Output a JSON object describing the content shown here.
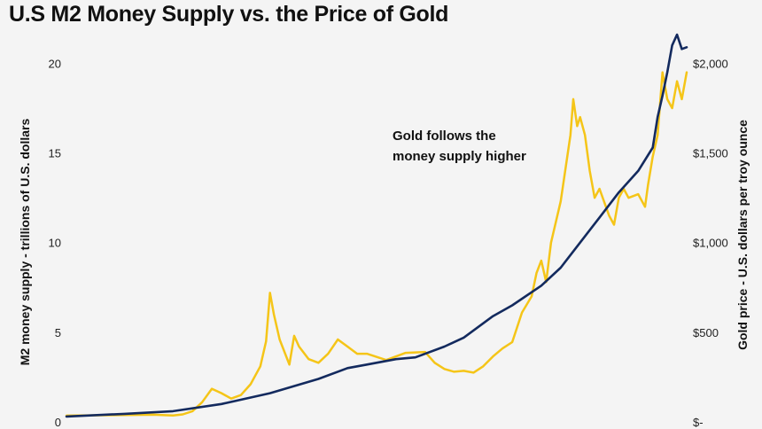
{
  "chart_data": {
    "type": "line",
    "title": "U.S M2 Money Supply vs. the Price of Gold",
    "xlabel": "",
    "ylabel": "M2 money supply - trillions of U.S. dollars",
    "y2label": "Gold price - U.S. dollars per troy ounce",
    "annotation": "Gold follows the money supply higher",
    "annotation_lines": [
      "Gold follows the",
      "money supply higher"
    ],
    "ylim": [
      0,
      22
    ],
    "y2lim": [
      0,
      2200
    ],
    "yticks": [
      0,
      5,
      10,
      15,
      20
    ],
    "ytick_labels": [
      "0",
      "5",
      "10",
      "15",
      "20"
    ],
    "y2ticks": [
      0,
      500,
      1000,
      1500,
      2000
    ],
    "y2tick_labels": [
      "$-",
      "$500",
      "$1,000",
      "$1,500",
      "$2,000"
    ],
    "xlim": [
      1959,
      2023
    ],
    "grid": false,
    "legend": "none",
    "series": [
      {
        "axis": "left",
        "color": "#132a5e",
        "x": [
          1959,
          1965,
          1970,
          1975,
          1980,
          1985,
          1988,
          1990,
          1993,
          1995,
          1998,
          2000,
          2003,
          2005,
          2008,
          2010,
          2012,
          2014,
          2016,
          2018,
          2019.5,
          2020,
          2020.5,
          2021,
          2021.5,
          2022,
          2022.5,
          2023
        ],
        "values": [
          0.3,
          0.45,
          0.6,
          1.0,
          1.6,
          2.4,
          3.0,
          3.2,
          3.5,
          3.6,
          4.2,
          4.7,
          5.9,
          6.5,
          7.6,
          8.6,
          10.0,
          11.4,
          12.8,
          14.0,
          15.3,
          17.0,
          18.2,
          19.5,
          21.0,
          21.6,
          20.8,
          20.9
        ]
      },
      {
        "axis": "right",
        "color": "#f5c518",
        "x": [
          1959,
          1968,
          1970,
          1971,
          1972,
          1973,
          1974,
          1975,
          1976,
          1977,
          1978,
          1979,
          1979.6,
          1980,
          1980.4,
          1981,
          1982,
          1982.5,
          1983,
          1984,
          1985,
          1986,
          1987,
          1988,
          1989,
          1990,
          1992,
          1994,
          1996,
          1997,
          1998,
          1999,
          2000,
          2001,
          2002,
          2003,
          2004,
          2005,
          2006,
          2007,
          2007.5,
          2008,
          2008.5,
          2009,
          2010,
          2011,
          2011.3,
          2011.7,
          2012,
          2012.5,
          2013,
          2013.5,
          2014,
          2015,
          2015.5,
          2016,
          2016.5,
          2017,
          2018,
          2018.7,
          2019,
          2019.5,
          2020,
          2020.5,
          2021,
          2021.5,
          2022,
          2022.5,
          2023
        ],
        "values": [
          35,
          40,
          36,
          42,
          60,
          110,
          185,
          160,
          130,
          150,
          210,
          310,
          450,
          720,
          600,
          460,
          320,
          480,
          420,
          350,
          330,
          380,
          460,
          420,
          380,
          380,
          345,
          385,
          390,
          330,
          295,
          280,
          285,
          275,
          310,
          365,
          410,
          445,
          610,
          700,
          830,
          900,
          780,
          1000,
          1230,
          1600,
          1800,
          1650,
          1700,
          1600,
          1400,
          1250,
          1300,
          1150,
          1100,
          1250,
          1300,
          1250,
          1270,
          1200,
          1320,
          1480,
          1600,
          1950,
          1800,
          1750,
          1900,
          1800,
          1950
        ]
      }
    ]
  }
}
